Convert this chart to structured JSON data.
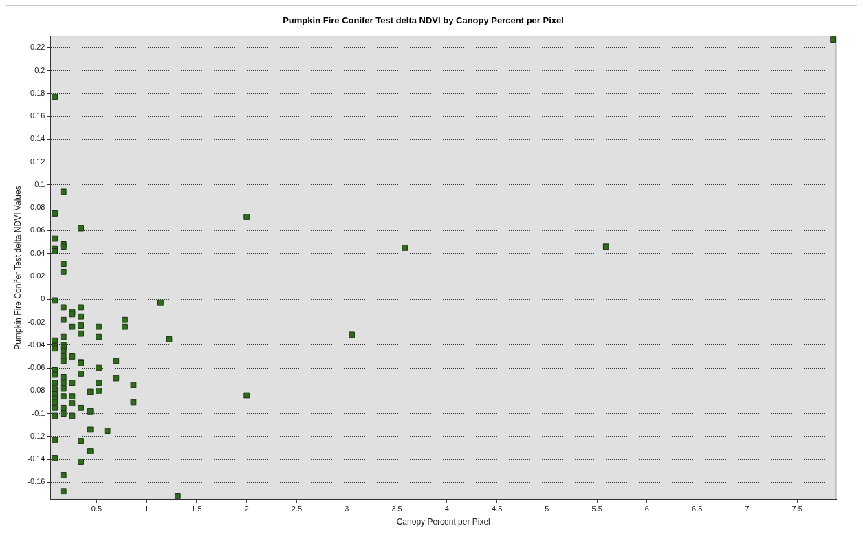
{
  "chart_data": {
    "type": "scatter",
    "title": "Pumpkin Fire Conifer Test delta NDVI by Canopy Percent per Pixel",
    "xlabel": "Canopy Percent per Pixel",
    "ylabel": "Pumpkin Fire Conifer Test delta NDVI Values",
    "series": [
      {
        "color": "#2f6a1f",
        "x": [
          0.082,
          0.082,
          0.082,
          0.082,
          0.082,
          0.082,
          0.082,
          0.082,
          0.082,
          0.082,
          0.082,
          0.082,
          0.082,
          0.082,
          0.082,
          0.082,
          0.082,
          0.082,
          0.082,
          0.082,
          0.169,
          0.169,
          0.169,
          0.169,
          0.169,
          0.169,
          0.169,
          0.169,
          0.169,
          0.169,
          0.169,
          0.169,
          0.169,
          0.169,
          0.169,
          0.169,
          0.169,
          0.169,
          0.169,
          0.169,
          0.169,
          0.256,
          0.256,
          0.256,
          0.256,
          0.256,
          0.256,
          0.256,
          0.256,
          0.343,
          0.343,
          0.343,
          0.343,
          0.343,
          0.343,
          0.343,
          0.343,
          0.343,
          0.343,
          0.343,
          0.437,
          0.437,
          0.437,
          0.437,
          0.521,
          0.521,
          0.521,
          0.521,
          0.521,
          0.608,
          0.695,
          0.695,
          0.782,
          0.782,
          0.868,
          0.868,
          1.139,
          1.225,
          1.31,
          2.0,
          2.0,
          3.05,
          3.58,
          5.59,
          7.86
        ],
        "values": [
          0.177,
          0.075,
          0.053,
          0.044,
          0.042,
          -0.001,
          -0.036,
          -0.041,
          -0.043,
          -0.062,
          -0.066,
          -0.073,
          -0.079,
          -0.083,
          -0.087,
          -0.09,
          -0.095,
          -0.102,
          -0.123,
          -0.139,
          0.094,
          0.048,
          0.046,
          0.031,
          0.024,
          -0.007,
          -0.018,
          -0.033,
          -0.04,
          -0.042,
          -0.045,
          -0.05,
          -0.054,
          -0.068,
          -0.073,
          -0.078,
          -0.085,
          -0.095,
          -0.1,
          -0.154,
          -0.168,
          -0.011,
          -0.013,
          -0.024,
          -0.05,
          -0.073,
          -0.085,
          -0.091,
          -0.102,
          0.062,
          -0.007,
          -0.015,
          -0.023,
          -0.03,
          -0.055,
          -0.056,
          -0.065,
          -0.095,
          -0.124,
          -0.142,
          -0.081,
          -0.098,
          -0.114,
          -0.133,
          -0.024,
          -0.033,
          -0.06,
          -0.073,
          -0.08,
          -0.115,
          -0.054,
          -0.069,
          -0.018,
          -0.024,
          -0.075,
          -0.09,
          -0.003,
          -0.035,
          -0.172,
          0.072,
          -0.084,
          -0.031,
          0.045,
          0.046,
          0.227
        ]
      }
    ],
    "xlim": [
      0.04,
      7.89
    ],
    "xticks": [
      0.5,
      1,
      1.5,
      2,
      2.5,
      3,
      3.5,
      4,
      4.5,
      5,
      5.5,
      6,
      6.5,
      7,
      7.5
    ],
    "ylim": [
      -0.175,
      0.23
    ],
    "yticks": [
      -0.16,
      -0.14,
      -0.12,
      -0.1,
      -0.08,
      -0.06,
      -0.04,
      -0.02,
      0,
      0.02,
      0.04,
      0.06,
      0.08,
      0.1,
      0.12,
      0.14,
      0.16,
      0.18,
      0.2,
      0.22
    ],
    "grid": "y",
    "marker": "square",
    "legend": false
  }
}
